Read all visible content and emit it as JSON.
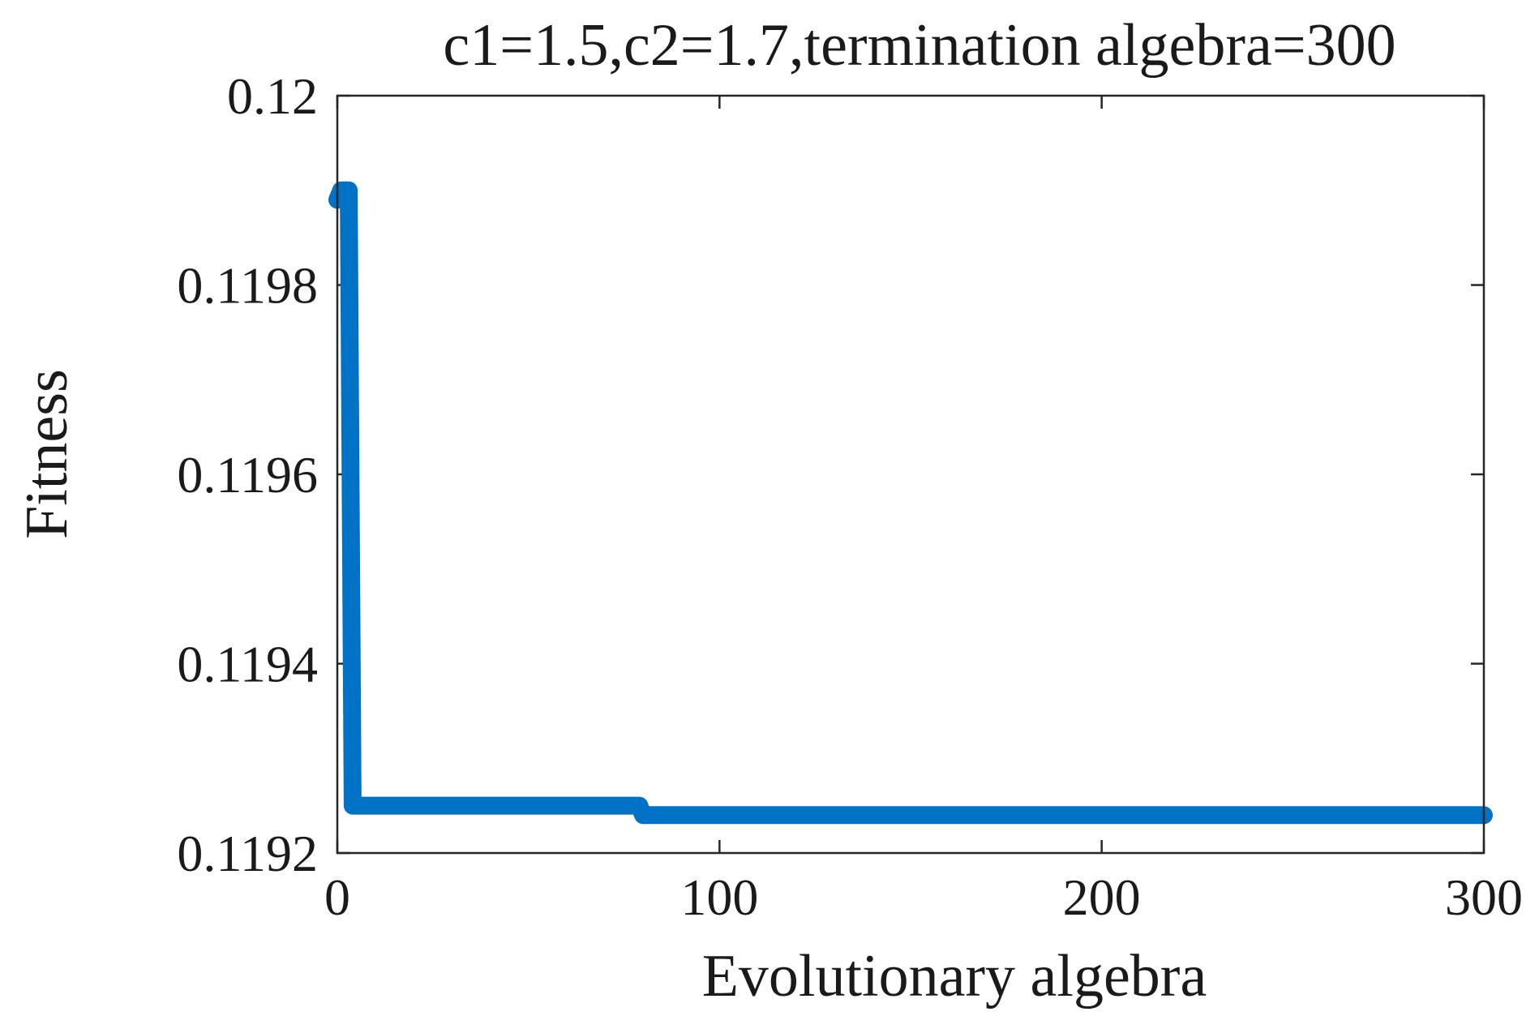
{
  "chart_data": {
    "type": "line",
    "title": "c1=1.5,c2=1.7,termination algebra=300",
    "xlabel": "Evolutionary algebra",
    "ylabel": "Fitness",
    "xlim": [
      0,
      300
    ],
    "ylim": [
      0.1192,
      0.12
    ],
    "xticks": [
      {
        "value": 0,
        "label": "0"
      },
      {
        "value": 100,
        "label": "100"
      },
      {
        "value": 200,
        "label": "200"
      },
      {
        "value": 300,
        "label": "300"
      }
    ],
    "yticks": [
      {
        "value": 0.1192,
        "label": "0.1192"
      },
      {
        "value": 0.1194,
        "label": "0.1194"
      },
      {
        "value": 0.1196,
        "label": "0.1196"
      },
      {
        "value": 0.1198,
        "label": "0.1198"
      },
      {
        "value": 0.12,
        "label": "0.12"
      }
    ],
    "grid": false,
    "series": [
      {
        "color": "#0072C6",
        "x": [
          0,
          1,
          2,
          3,
          4,
          79,
          80,
          300
        ],
        "y": [
          0.11989,
          0.1199,
          0.1199,
          0.1199,
          0.11925,
          0.11925,
          0.11924,
          0.11924
        ]
      }
    ]
  }
}
